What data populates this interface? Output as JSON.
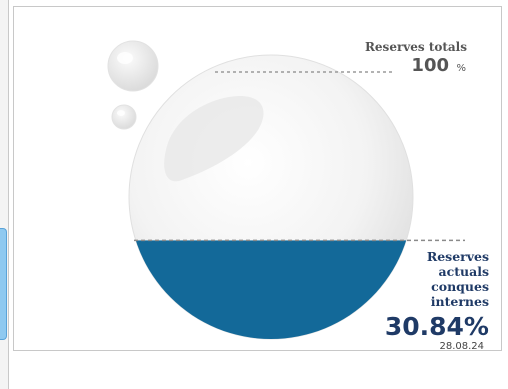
{
  "chart_data": {
    "type": "gauge",
    "total": {
      "label": "Reserves totals",
      "value": "100",
      "unit": "%"
    },
    "current": {
      "label_lines": [
        "Reserves",
        "actuals",
        "conques",
        "internes"
      ],
      "value": 30.84,
      "value_text": "30.84%",
      "date": "28.08.24"
    },
    "fill_fraction": 0.3084,
    "fill_color": "#136999"
  }
}
